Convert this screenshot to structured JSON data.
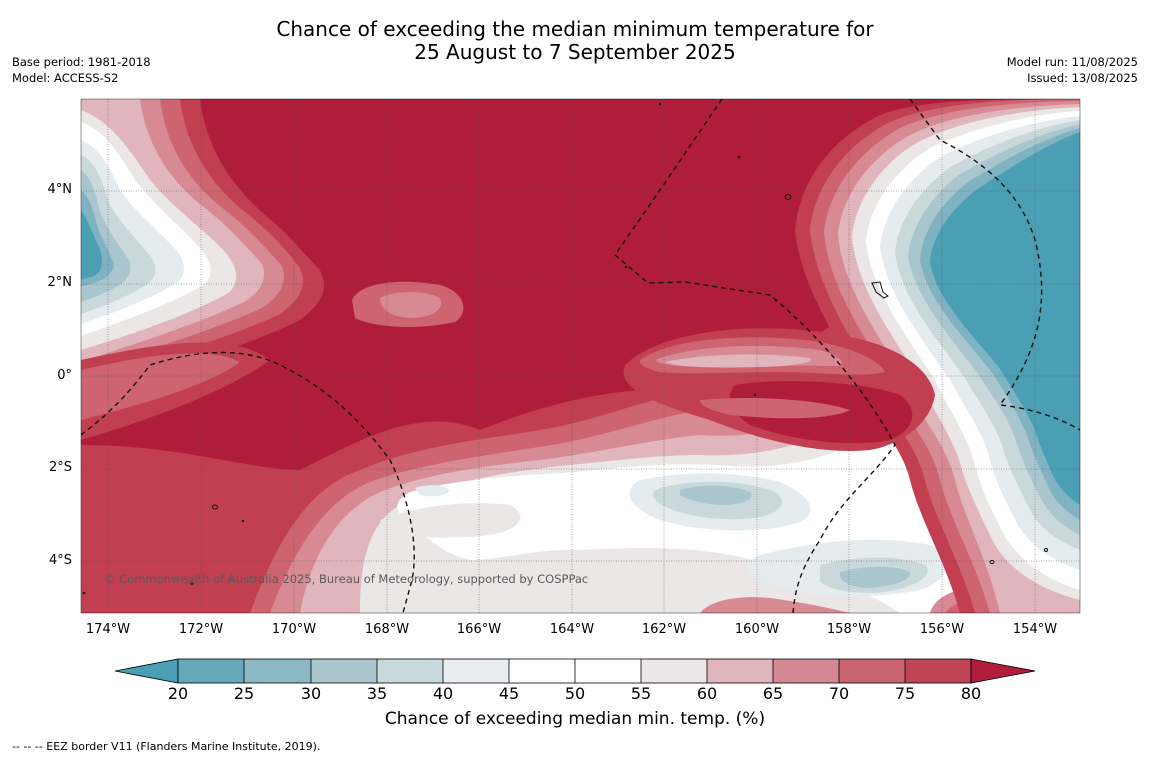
{
  "title": {
    "line1": "Chance of exceeding the median minimum temperature for",
    "line2": "25 August to 7 September 2025"
  },
  "meta_left": {
    "base_period": "Base period: 1981-2018",
    "model": "Model: ACCESS-S2"
  },
  "meta_right": {
    "model_run": "Model run: 11/08/2025",
    "issued": "Issued: 13/08/2025"
  },
  "map": {
    "latitude_labels": [
      "4°N",
      "2°N",
      "0°",
      "2°S",
      "4°S"
    ],
    "longitude_labels": [
      "174°W",
      "172°W",
      "170°W",
      "168°W",
      "166°W",
      "164°W",
      "162°W",
      "160°W",
      "158°W",
      "156°W",
      "154°W"
    ],
    "copyright": "© Commonwealth of Australia 2025, Bureau of Meteorology, supported by COSPPac",
    "colors": {
      "warm_high": "#b01d3a",
      "warm_75": "#c13f50",
      "warm_70": "#cd6470",
      "warm_65": "#d78a94",
      "warm_60": "#e1b5bc",
      "neutral_55": "#ebe7e7",
      "neutral_50": "#ffffff",
      "cool_40": "#e5ecef",
      "cool_35": "#cad8dc",
      "cool_30": "#a9c6ce",
      "cool_25": "#7fb3c1",
      "cool_low": "#4a9fb4"
    }
  },
  "colorbar": {
    "ticks": [
      "20",
      "25",
      "30",
      "35",
      "40",
      "45",
      "50",
      "55",
      "60",
      "65",
      "70",
      "75",
      "80"
    ],
    "colors": [
      "#4a9fb4",
      "#66a9bb",
      "#8cb8c4",
      "#aac6cd",
      "#c9d8dc",
      "#e8eef0",
      "#ffffff",
      "#ffffff",
      "#ece7e7",
      "#e0b5bc",
      "#d48893",
      "#c96470",
      "#bf4456",
      "#b01d3a"
    ],
    "title": "Chance of exceeding median min. temp. (%)"
  },
  "footer": "--  --  -- EEZ border V11 (Flanders Marine Institute, 2019)."
}
